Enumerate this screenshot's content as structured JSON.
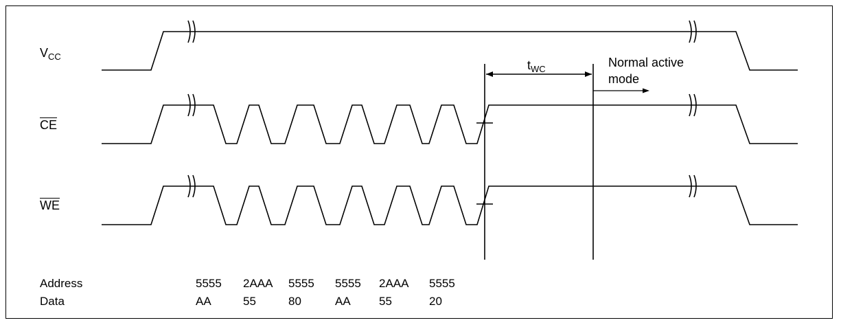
{
  "signals": {
    "vcc": {
      "main": "V",
      "sub": "CC"
    },
    "ce": "CE",
    "we": "WE"
  },
  "timing": {
    "twc_main": "t",
    "twc_sub": "WC",
    "mode_line1": "Normal active",
    "mode_line2": "mode"
  },
  "table": {
    "address_label": "Address",
    "data_label": "Data",
    "address": [
      "5555",
      "2AAA",
      "5555",
      "5555",
      "2AAA",
      "5555"
    ],
    "data": [
      "AA",
      "55",
      "80",
      "AA",
      "55",
      "20"
    ]
  }
}
